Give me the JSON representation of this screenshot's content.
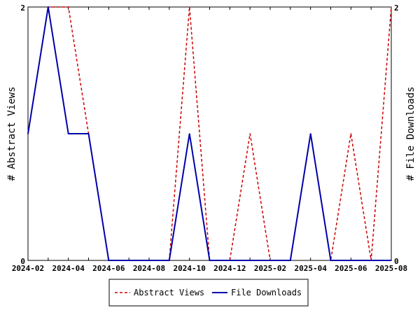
{
  "chart_data": {
    "type": "line",
    "x": [
      "2024-02",
      "2024-03",
      "2024-04",
      "2024-05",
      "2024-06",
      "2024-07",
      "2024-08",
      "2024-09",
      "2024-10",
      "2024-11",
      "2024-12",
      "2025-01",
      "2025-02",
      "2025-03",
      "2025-04",
      "2025-05",
      "2025-06",
      "2025-07",
      "2025-08"
    ],
    "x_tick_labels": [
      "2024-02",
      "2024-04",
      "2024-06",
      "2024-08",
      "2024-10",
      "2024-12",
      "2025-02",
      "2025-04",
      "2025-06",
      "2025-08"
    ],
    "series": [
      {
        "name": "Abstract Views",
        "color": "#cc0000",
        "dash": "dashed",
        "axis": "left",
        "values": [
          1,
          2,
          2,
          1,
          0,
          0,
          0,
          0,
          2,
          0,
          0,
          1,
          0,
          0,
          1,
          0,
          1,
          0,
          2
        ]
      },
      {
        "name": "File Downloads",
        "color": "#0000aa",
        "dash": "solid",
        "axis": "right",
        "values": [
          1,
          2,
          1,
          1,
          0,
          0,
          0,
          0,
          1,
          0,
          0,
          0,
          0,
          0,
          1,
          0,
          0,
          0,
          0
        ]
      }
    ],
    "ylabel_left": "# Abstract Views",
    "ylabel_right": "# File Downloads",
    "ylim": [
      0,
      2
    ],
    "y_ticks": [
      "0",
      "2"
    ],
    "legend_position": "bottom"
  }
}
